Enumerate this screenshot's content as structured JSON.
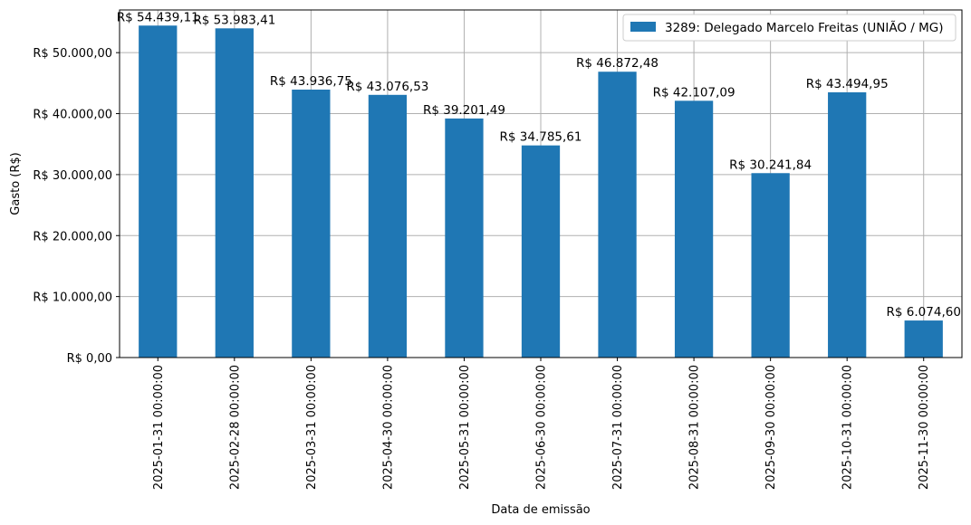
{
  "chart_data": {
    "type": "bar",
    "xlabel": "Data de emissão",
    "ylabel": "Gasto (R$)",
    "ylim": [
      0,
      57000
    ],
    "yticks": [
      0,
      10000,
      20000,
      30000,
      40000,
      50000
    ],
    "ytick_labels": [
      "R$ 0,00",
      "R$ 10.000,00",
      "R$ 20.000,00",
      "R$ 30.000,00",
      "R$ 40.000,00",
      "R$ 50.000,00"
    ],
    "grid": true,
    "legend_position": "top-right",
    "categories": [
      "2025-01-31 00:00:00",
      "2025-02-28 00:00:00",
      "2025-03-31 00:00:00",
      "2025-04-30 00:00:00",
      "2025-05-31 00:00:00",
      "2025-06-30 00:00:00",
      "2025-07-31 00:00:00",
      "2025-08-31 00:00:00",
      "2025-09-30 00:00:00",
      "2025-10-31 00:00:00",
      "2025-11-30 00:00:00"
    ],
    "series": [
      {
        "name": "3289: Delegado Marcelo Freitas (UNIÃO / MG)",
        "color": "#1f77b4",
        "values": [
          54439.11,
          53983.41,
          43936.75,
          43076.53,
          39201.49,
          34785.61,
          46872.48,
          42107.09,
          30241.84,
          43494.95,
          6074.6
        ],
        "data_labels": [
          "R$ 54.439,11",
          "R$ 53.983,41",
          "R$ 43.936,75",
          "R$ 43.076,53",
          "R$ 39.201,49",
          "R$ 34.785,61",
          "R$ 46.872,48",
          "R$ 42.107,09",
          "R$ 30.241,84",
          "R$ 43.494,95",
          "R$ 6.074,60"
        ]
      }
    ]
  }
}
